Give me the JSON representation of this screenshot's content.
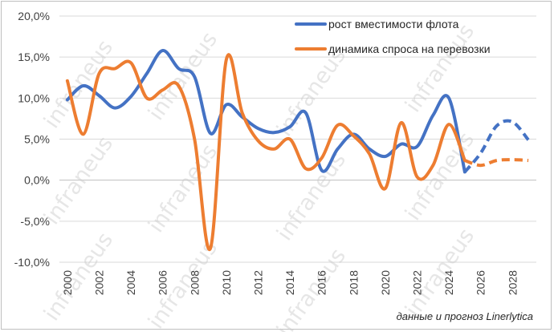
{
  "chart_data": {
    "type": "line",
    "title": "",
    "xlabel": "",
    "ylabel": "",
    "ylim": [
      -10,
      20
    ],
    "yticks": [
      "20,0%",
      "15,0%",
      "10,0%",
      "5,0%",
      "0,0%",
      "-5,0%",
      "-10,0%"
    ],
    "ytick_values": [
      20,
      15,
      10,
      5,
      0,
      -5,
      -10
    ],
    "xticks": [
      "2000",
      "2002",
      "2004",
      "2006",
      "2008",
      "2010",
      "2012",
      "2014",
      "2016",
      "2018",
      "2020",
      "2022",
      "2024",
      "2026",
      "2028"
    ],
    "xtick_values": [
      2000,
      2002,
      2004,
      2006,
      2008,
      2010,
      2012,
      2014,
      2016,
      2018,
      2020,
      2022,
      2024,
      2026,
      2028
    ],
    "xlim": [
      1999.5,
      2029.5
    ],
    "grid": true,
    "legend_position": "top-right",
    "series": [
      {
        "name": "рост вместимости флота",
        "color": "#4472C4",
        "x": [
          2000,
          2001,
          2002,
          2003,
          2004,
          2005,
          2006,
          2007,
          2008,
          2009,
          2010,
          2011,
          2012,
          2013,
          2014,
          2015,
          2016,
          2017,
          2018,
          2019,
          2020,
          2021,
          2022,
          2023,
          2024,
          2025
        ],
        "values": [
          9.8,
          11.5,
          10.3,
          8.8,
          10.2,
          13.0,
          15.8,
          13.6,
          12.6,
          5.7,
          9.2,
          7.7,
          6.3,
          5.8,
          6.5,
          8.2,
          1.2,
          3.8,
          5.6,
          3.8,
          2.9,
          4.4,
          4.1,
          7.9,
          10.0,
          1.0
        ],
        "forecast_x": [
          2025,
          2026,
          2027,
          2028,
          2029
        ],
        "forecast_values": [
          1.0,
          3.3,
          6.6,
          7.1,
          4.9
        ]
      },
      {
        "name": "динамика спроса на перевозки",
        "color": "#ED7D31",
        "x": [
          2000,
          2001,
          2002,
          2003,
          2004,
          2005,
          2006,
          2007,
          2008,
          2009,
          2010,
          2011,
          2012,
          2013,
          2014,
          2015,
          2016,
          2017,
          2018,
          2019,
          2020,
          2021,
          2022,
          2023,
          2024,
          2025
        ],
        "values": [
          12.1,
          5.6,
          13.0,
          13.6,
          14.3,
          10.0,
          11.0,
          11.5,
          5.0,
          -8.3,
          14.7,
          8.2,
          4.8,
          3.8,
          5.0,
          1.4,
          2.7,
          6.7,
          5.4,
          3.2,
          -1.0,
          7.0,
          0.4,
          1.8,
          6.8,
          2.4
        ],
        "forecast_x": [
          2025,
          2026,
          2027,
          2028,
          2029
        ],
        "forecast_values": [
          2.4,
          1.8,
          2.4,
          2.5,
          2.4
        ]
      }
    ]
  },
  "watermark": "infraneus",
  "source_note": "данные и прогноз Linerlytica"
}
